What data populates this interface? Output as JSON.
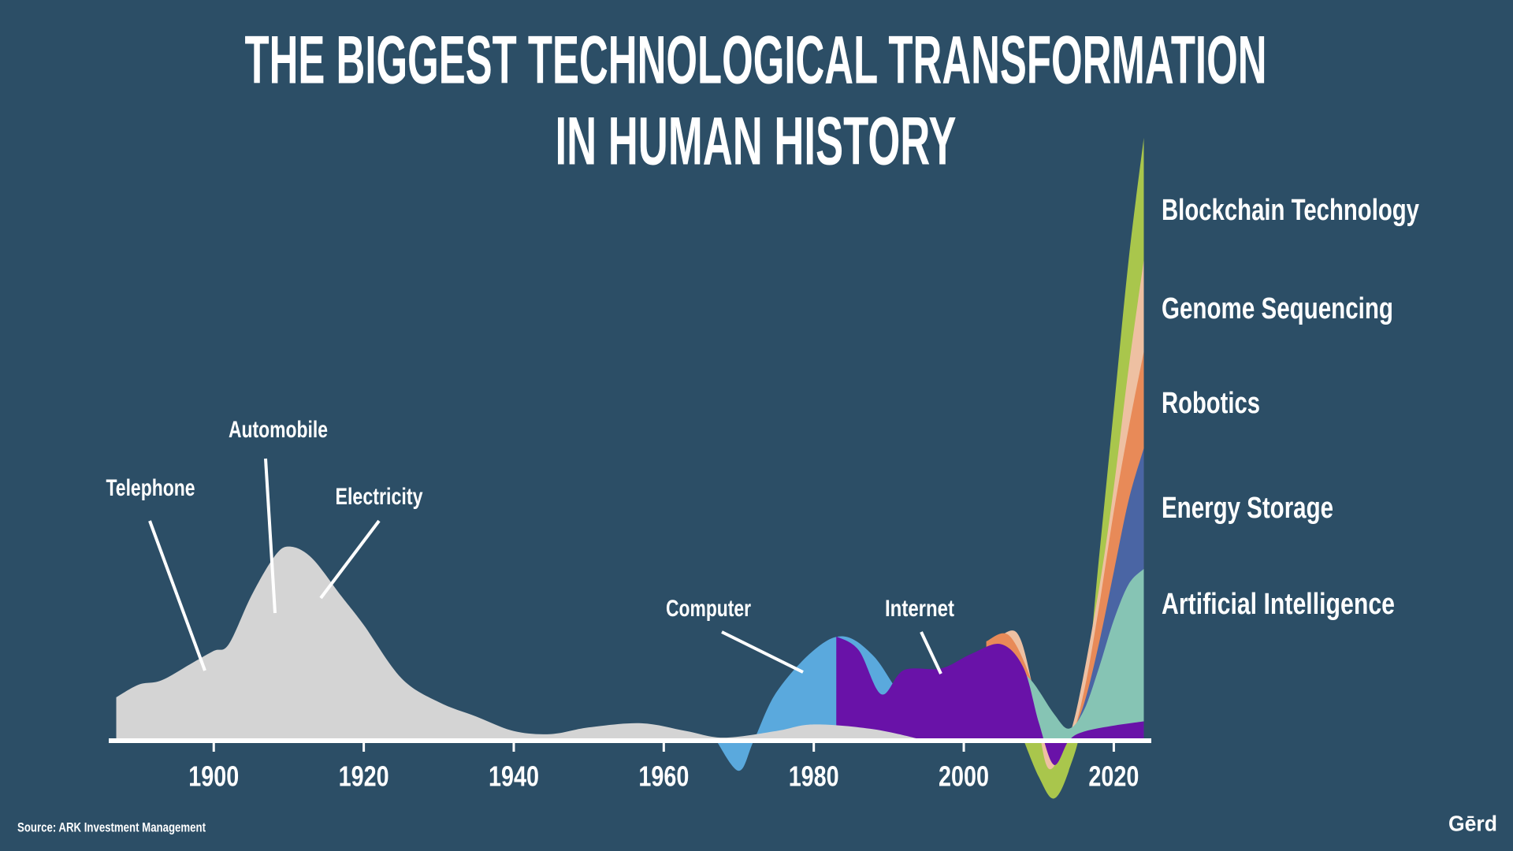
{
  "chart_data": {
    "type": "area",
    "title": [
      "THE BIGGEST TECHNOLOGICAL TRANSFORMATION",
      "IN HUMAN HISTORY"
    ],
    "annotations": [
      "Telephone",
      "Automobile",
      "Electricity",
      "Computer",
      "Internet"
    ],
    "source": "Source: ARK Investment Management",
    "brand": "Gērd",
    "xlim": [
      1886,
      2025
    ],
    "xticks": [
      1900,
      1920,
      1940,
      1960,
      1980,
      2000,
      2020
    ],
    "ylim": [
      -10,
      100
    ],
    "series": [
      {
        "name": "Blockchain Technology",
        "color": "#a9c64c",
        "x": [
          2008,
          2010,
          2012,
          2014,
          2016,
          2018,
          2020,
          2022,
          2024
        ],
        "values": [
          0,
          -6,
          -9.6,
          -5,
          5,
          30,
          55,
          80,
          100
        ]
      },
      {
        "name": "Genome Sequencing",
        "color": "#eec0a2",
        "x": [
          2004,
          2007,
          2009,
          2011,
          2013,
          2015,
          2018,
          2020,
          2022,
          2024
        ],
        "values": [
          16.5,
          18,
          10,
          -4,
          -2,
          5,
          25,
          42,
          62,
          79.7
        ]
      },
      {
        "name": "Robotics",
        "color": "#e88a58",
        "x": [
          2003,
          2006,
          2009,
          2011,
          2014,
          2016,
          2018,
          2020,
          2022,
          2024
        ],
        "values": [
          16.5,
          17.5,
          10,
          0,
          0,
          8,
          22,
          38,
          52,
          64.5
        ]
      },
      {
        "name": "Energy Storage",
        "color": "#4a65a4",
        "x": [
          2014,
          2016,
          2018,
          2020,
          2022,
          2024
        ],
        "values": [
          0,
          6,
          16,
          28,
          40,
          48.5
        ]
      },
      {
        "name": "Artificial Intelligence",
        "color": "#86c4b4",
        "x": [
          2006,
          2009,
          2012,
          2014,
          2016,
          2018,
          2020,
          2022,
          2024
        ],
        "values": [
          13,
          10,
          4.5,
          2,
          5,
          12,
          20,
          26,
          28.5
        ]
      },
      {
        "color": "#5aa9dd",
        "x": [
          1967,
          1970,
          1972,
          1975,
          1980,
          1984,
          1988,
          1992,
          1996,
          2000,
          2003
        ],
        "values": [
          0,
          -5,
          0,
          8,
          15,
          17.3,
          14,
          7,
          4,
          1,
          0
        ]
      },
      {
        "color": "#6912a8",
        "x": [
          1983,
          1986,
          1989,
          1992,
          1997,
          2001,
          2005,
          2008,
          2010,
          2012,
          2014,
          2016,
          2020,
          2024
        ],
        "values": [
          17.3,
          15,
          7.7,
          11.7,
          12,
          14.4,
          16,
          12,
          3,
          -4,
          0,
          1.5,
          2.5,
          3.2
        ]
      },
      {
        "color": "#d4d4d4",
        "x": [
          1887,
          1890,
          1893,
          1897,
          1900,
          1902,
          1905,
          1908,
          1910,
          1913,
          1917,
          1920,
          1925,
          1930,
          1935,
          1940,
          1945,
          1950,
          1957,
          1963,
          1968,
          1975,
          1980,
          1988,
          1995
        ],
        "values": [
          7.2,
          9.3,
          10,
          12.8,
          14.9,
          16,
          24,
          30.4,
          32.2,
          30.4,
          24,
          19.2,
          10.4,
          6.4,
          4,
          1.6,
          1.1,
          2.2,
          2.9,
          1.6,
          0.5,
          1.6,
          2.7,
          1.9,
          0
        ]
      }
    ]
  }
}
